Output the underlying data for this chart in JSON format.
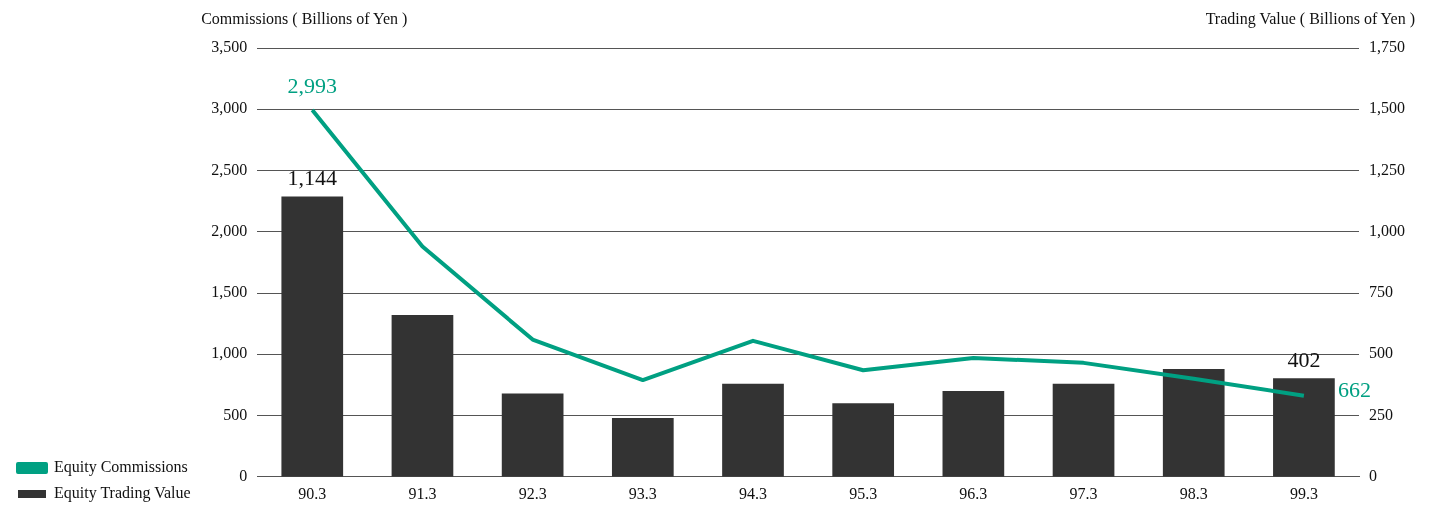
{
  "chart_data": {
    "type": "bar",
    "ylabel": "Commissions ( Billions of Yen )",
    "y2label": "Trading Value ( Billions of Yen )",
    "categories": [
      "90.3",
      "91.3",
      "92.3",
      "93.3",
      "94.3",
      "95.3",
      "96.3",
      "97.3",
      "98.3",
      "99.3"
    ],
    "series": [
      {
        "name": "Equity Commissions",
        "type": "line",
        "color": "#00a082",
        "values": [
          2993,
          1880,
          1120,
          790,
          1110,
          870,
          970,
          930,
          800,
          662
        ],
        "value_labels": [
          "2,993",
          null,
          null,
          null,
          null,
          null,
          null,
          null,
          null,
          "662"
        ]
      },
      {
        "name": "Equity Trading Value",
        "type": "bar",
        "axis": "y2",
        "color": "#333333",
        "values": [
          1144,
          660,
          340,
          240,
          380,
          300,
          350,
          380,
          440,
          402
        ],
        "value_labels": [
          "1,144",
          null,
          null,
          null,
          null,
          null,
          null,
          null,
          null,
          "402"
        ]
      }
    ],
    "ylim": [
      0,
      3500
    ],
    "yticks": [
      0,
      500,
      {
        "value": 1000,
        "label": "1,000"
      },
      {
        "value": 1500,
        "label": "1,500"
      },
      {
        "value": 2000,
        "label": "2,000"
      },
      {
        "value": 2500,
        "label": "2,500"
      },
      {
        "value": 3000,
        "label": "3,000"
      },
      {
        "value": 3500,
        "label": "3,500"
      }
    ],
    "y2lim": [
      0,
      1750
    ],
    "y2ticks": [
      0,
      250,
      500,
      750,
      {
        "value": 1000,
        "label": "1,000"
      },
      {
        "value": 1250,
        "label": "1,250"
      },
      {
        "value": 1500,
        "label": "1,500"
      },
      {
        "value": 1750,
        "label": "1,750"
      }
    ],
    "grid": "y",
    "legend": "left",
    "marker": "none"
  }
}
